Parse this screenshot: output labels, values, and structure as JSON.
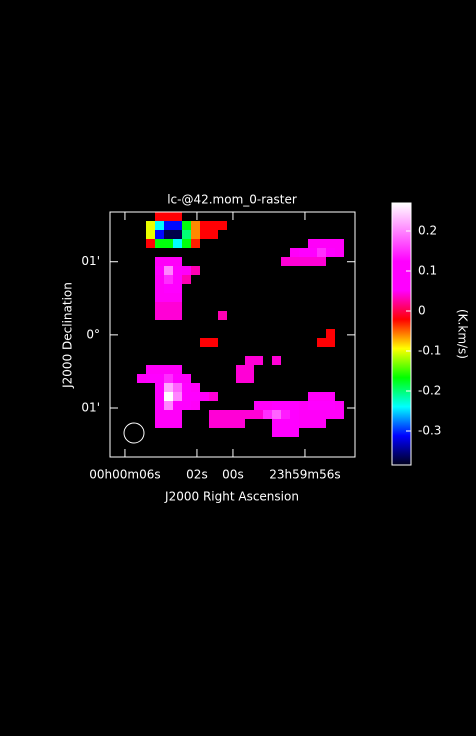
{
  "chart_data": {
    "type": "raster",
    "title": "lc-@42.mom_0-raster",
    "x_label": "J2000 Right Ascension",
    "y_label": "J2000 Declination",
    "colorbar_label": "(K.km/s)",
    "xlim": [
      6.83,
      -6.78
    ],
    "xticks": [
      {
        "value": 6,
        "label": "00h00m06s"
      },
      {
        "value": 2,
        "label": "02s"
      },
      {
        "value": 0,
        "label": "00s"
      },
      {
        "value": -4,
        "label": "23h59m56s"
      }
    ],
    "ylim": [
      -1.67,
      1.68
    ],
    "yticks": [
      {
        "value": 1,
        "label": "01'"
      },
      {
        "value": 0,
        "label": "0°"
      },
      {
        "value": -1,
        "label": "01'"
      }
    ],
    "zlim": [
      -0.385,
      0.27
    ],
    "zticks": [
      0.2,
      0.1,
      0,
      -0.1,
      -0.2,
      -0.3
    ],
    "colormap": [
      "#00001a",
      "#0000ff",
      "#00ffff",
      "#00ff00",
      "#ffff00",
      "#ff0000",
      "#ff00ff",
      "#ff00ff",
      "#ff80ff",
      "#ffffff"
    ],
    "z": [
      [
        null,
        null,
        null,
        null,
        null,
        -0.02,
        -0.02,
        -0.02,
        null,
        null,
        null,
        null,
        null,
        null,
        null,
        null,
        null,
        null,
        null,
        null,
        null,
        null,
        null,
        null,
        null,
        null,
        null
      ],
      [
        null,
        null,
        null,
        null,
        -0.1,
        -0.24,
        -0.31,
        -0.31,
        -0.17,
        -0.06,
        -0.02,
        -0.02,
        -0.02,
        null,
        null,
        null,
        null,
        null,
        null,
        null,
        null,
        null,
        null,
        null,
        null,
        null,
        null
      ],
      [
        null,
        null,
        null,
        null,
        -0.1,
        -0.31,
        -0.37,
        -0.37,
        -0.2,
        -0.06,
        -0.02,
        -0.02,
        null,
        null,
        null,
        null,
        null,
        null,
        null,
        null,
        null,
        null,
        null,
        null,
        null,
        null,
        null
      ],
      [
        null,
        null,
        null,
        null,
        -0.02,
        -0.17,
        -0.17,
        -0.24,
        -0.17,
        -0.03,
        null,
        null,
        null,
        null,
        null,
        null,
        null,
        null,
        null,
        null,
        null,
        null,
        0.05,
        0.05,
        0.05,
        0.05,
        null
      ],
      [
        null,
        null,
        null,
        null,
        null,
        null,
        null,
        null,
        null,
        null,
        null,
        null,
        null,
        null,
        null,
        null,
        null,
        null,
        null,
        null,
        0.05,
        0.08,
        0.12,
        0.15,
        0.1,
        0.05,
        null
      ],
      [
        null,
        null,
        null,
        null,
        null,
        0.05,
        0.05,
        0.05,
        null,
        null,
        null,
        null,
        null,
        null,
        null,
        null,
        null,
        null,
        null,
        0.04,
        0.04,
        0.04,
        0.04,
        0.04,
        null,
        null,
        null
      ],
      [
        null,
        null,
        null,
        null,
        null,
        0.06,
        0.2,
        0.1,
        0.05,
        0.03,
        null,
        null,
        null,
        null,
        null,
        null,
        null,
        null,
        null,
        null,
        null,
        null,
        null,
        null,
        null,
        null,
        null
      ],
      [
        null,
        null,
        null,
        null,
        null,
        0.05,
        0.15,
        0.1,
        0.03,
        null,
        null,
        null,
        null,
        null,
        null,
        null,
        null,
        null,
        null,
        null,
        null,
        null,
        null,
        null,
        null,
        null,
        null
      ],
      [
        null,
        null,
        null,
        null,
        null,
        0.05,
        0.08,
        0.06,
        null,
        null,
        null,
        null,
        null,
        null,
        null,
        null,
        null,
        null,
        null,
        null,
        null,
        null,
        null,
        null,
        null,
        null,
        null
      ],
      [
        null,
        null,
        null,
        null,
        null,
        0.05,
        0.05,
        0.05,
        null,
        null,
        null,
        null,
        null,
        null,
        null,
        null,
        null,
        null,
        null,
        null,
        null,
        null,
        null,
        null,
        null,
        null,
        null
      ],
      [
        null,
        null,
        null,
        null,
        null,
        0.04,
        0.04,
        0.04,
        null,
        null,
        null,
        null,
        null,
        null,
        null,
        null,
        null,
        null,
        null,
        null,
        null,
        null,
        null,
        null,
        null,
        null,
        null
      ],
      [
        null,
        null,
        null,
        null,
        null,
        0.04,
        0.04,
        0.04,
        null,
        null,
        null,
        null,
        0.03,
        null,
        null,
        null,
        null,
        null,
        null,
        null,
        null,
        null,
        null,
        null,
        null,
        null,
        null
      ],
      [
        null,
        null,
        null,
        null,
        null,
        null,
        null,
        null,
        null,
        null,
        null,
        null,
        null,
        null,
        null,
        null,
        null,
        null,
        null,
        null,
        null,
        null,
        null,
        null,
        null,
        null,
        null
      ],
      [
        null,
        null,
        null,
        null,
        null,
        null,
        null,
        null,
        null,
        null,
        null,
        null,
        null,
        null,
        null,
        null,
        null,
        null,
        null,
        null,
        null,
        null,
        null,
        null,
        -0.02,
        null,
        null
      ],
      [
        null,
        null,
        null,
        null,
        null,
        null,
        null,
        null,
        null,
        null,
        -0.02,
        -0.02,
        null,
        null,
        null,
        null,
        null,
        null,
        null,
        null,
        null,
        null,
        null,
        -0.02,
        -0.02,
        null,
        null
      ],
      [
        null,
        null,
        null,
        null,
        null,
        null,
        null,
        null,
        null,
        null,
        null,
        null,
        null,
        null,
        null,
        null,
        null,
        null,
        null,
        null,
        null,
        null,
        null,
        null,
        null,
        null,
        null
      ],
      [
        null,
        null,
        null,
        null,
        null,
        null,
        null,
        null,
        null,
        null,
        null,
        null,
        null,
        null,
        null,
        0.04,
        0.04,
        null,
        0.04,
        null,
        null,
        null,
        null,
        null,
        null,
        null,
        null
      ],
      [
        null,
        null,
        null,
        null,
        0.05,
        0.05,
        0.05,
        0.05,
        null,
        null,
        null,
        null,
        null,
        null,
        0.04,
        0.04,
        null,
        null,
        null,
        null,
        null,
        null,
        null,
        null,
        null,
        null,
        null
      ],
      [
        null,
        null,
        null,
        0.05,
        0.06,
        0.08,
        0.15,
        0.1,
        0.05,
        null,
        null,
        null,
        null,
        null,
        0.04,
        0.04,
        null,
        null,
        null,
        null,
        null,
        null,
        null,
        null,
        null,
        null,
        null
      ],
      [
        null,
        null,
        null,
        null,
        null,
        0.1,
        0.22,
        0.18,
        0.08,
        0.05,
        null,
        null,
        null,
        null,
        null,
        null,
        null,
        null,
        null,
        null,
        null,
        null,
        null,
        null,
        null,
        null,
        null
      ],
      [
        null,
        null,
        null,
        null,
        null,
        0.12,
        0.27,
        0.2,
        0.1,
        0.06,
        0.05,
        0.04,
        null,
        null,
        null,
        null,
        null,
        null,
        null,
        null,
        null,
        null,
        0.05,
        0.05,
        0.05,
        null,
        null
      ],
      [
        null,
        null,
        null,
        null,
        null,
        0.12,
        0.2,
        0.12,
        0.06,
        0.05,
        null,
        null,
        null,
        null,
        null,
        null,
        0.05,
        0.05,
        0.08,
        0.1,
        0.08,
        0.05,
        0.07,
        0.07,
        0.06,
        0.05,
        null
      ],
      [
        null,
        null,
        null,
        null,
        null,
        0.05,
        0.05,
        0.05,
        null,
        null,
        null,
        0.04,
        0.04,
        0.04,
        0.04,
        0.04,
        0.04,
        0.15,
        0.18,
        0.14,
        0.1,
        0.05,
        0.05,
        0.05,
        0.05,
        0.05,
        null
      ],
      [
        null,
        null,
        null,
        null,
        null,
        0.05,
        0.05,
        0.05,
        null,
        null,
        null,
        0.04,
        0.04,
        0.04,
        0.04,
        null,
        null,
        null,
        0.1,
        0.12,
        0.08,
        0.05,
        0.05,
        0.05,
        null,
        null,
        null
      ],
      [
        null,
        null,
        null,
        null,
        null,
        null,
        null,
        null,
        null,
        null,
        null,
        null,
        null,
        null,
        null,
        null,
        null,
        null,
        0.06,
        0.06,
        0.06,
        null,
        null,
        null,
        null,
        null,
        null
      ],
      [
        null,
        null,
        null,
        null,
        null,
        null,
        null,
        null,
        null,
        null,
        null,
        null,
        null,
        null,
        null,
        null,
        null,
        null,
        null,
        null,
        null,
        null,
        null,
        null,
        null,
        null,
        null
      ],
      [
        null,
        null,
        null,
        null,
        null,
        null,
        null,
        null,
        null,
        null,
        null,
        null,
        null,
        null,
        null,
        null,
        null,
        null,
        null,
        null,
        null,
        null,
        null,
        null,
        null,
        null,
        null
      ]
    ]
  }
}
